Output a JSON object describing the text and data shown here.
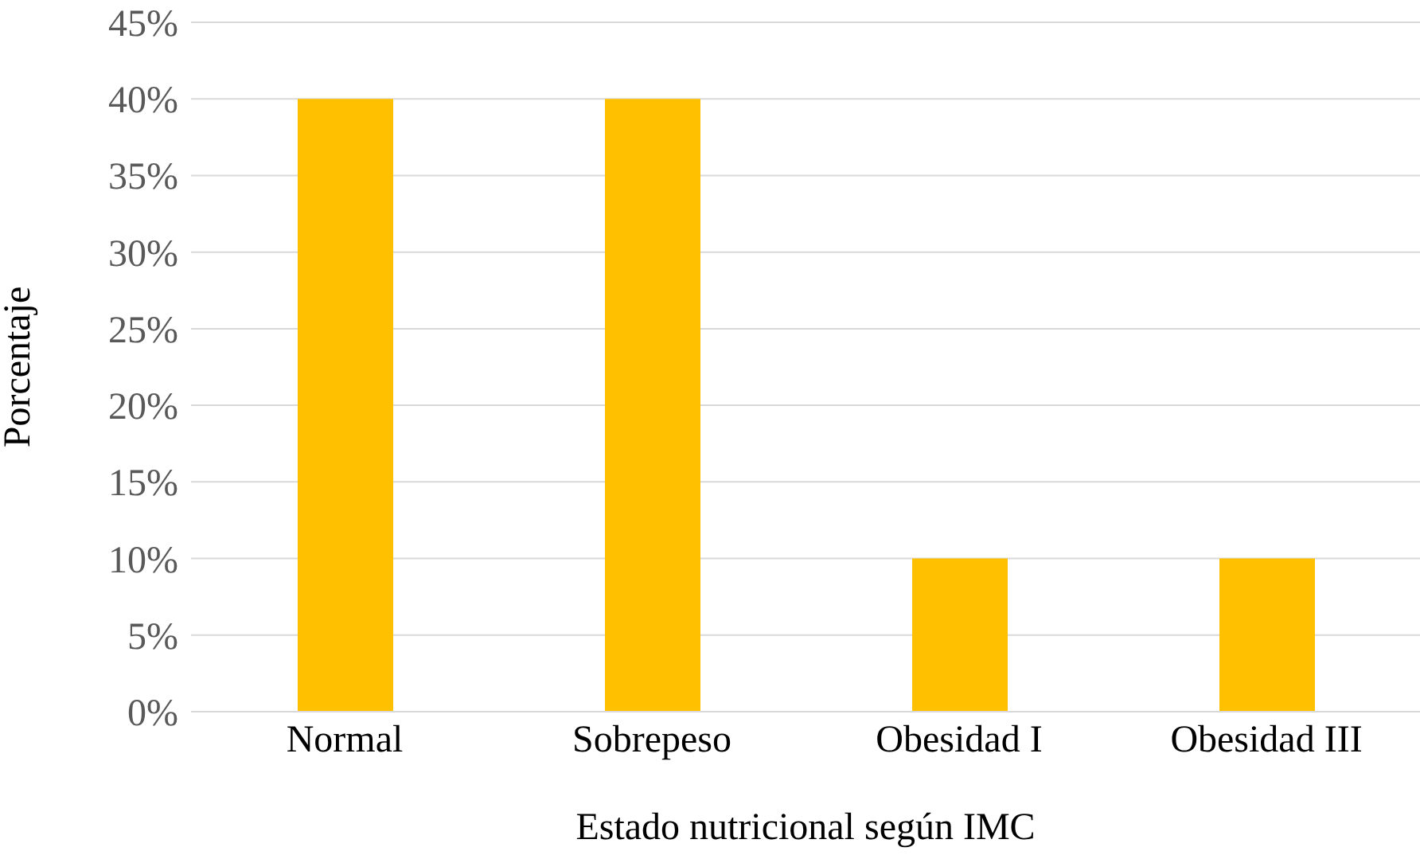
{
  "chart_data": {
    "type": "bar",
    "xlabel": "Estado nutricional según IMC",
    "ylabel": "Porcentaje",
    "categories": [
      "Normal",
      "Sobrepeso",
      "Obesidad I",
      "Obesidad III"
    ],
    "values": [
      40,
      40,
      10,
      10
    ],
    "color": "#ffc000",
    "ylim": [
      0,
      45
    ],
    "yticks": [
      {
        "value": 0,
        "label": "0%"
      },
      {
        "value": 5,
        "label": "5%"
      },
      {
        "value": 10,
        "label": "10%"
      },
      {
        "value": 15,
        "label": "15%"
      },
      {
        "value": 20,
        "label": "20%"
      },
      {
        "value": 25,
        "label": "25%"
      },
      {
        "value": 30,
        "label": "30%"
      },
      {
        "value": 35,
        "label": "35%"
      },
      {
        "value": 40,
        "label": "40%"
      },
      {
        "value": 45,
        "label": "45%"
      }
    ],
    "grid": "y",
    "legend": false
  }
}
